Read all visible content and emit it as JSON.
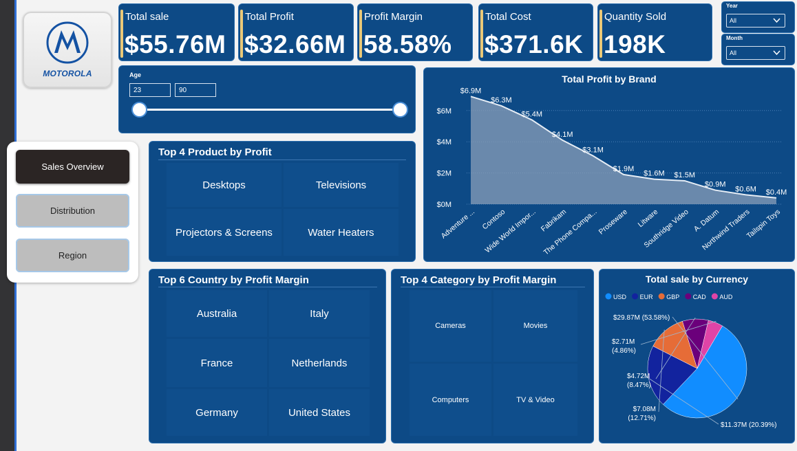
{
  "logo": {
    "brand": "MOTOROLA"
  },
  "kpis": [
    {
      "label": "Total sale",
      "value": "$55.76M"
    },
    {
      "label": "Total Profit",
      "value": "$32.66M"
    },
    {
      "label": "Profit Margin",
      "value": "58.58%"
    },
    {
      "label": "Total Cost",
      "value": "$371.6K"
    },
    {
      "label": "Quantity Sold",
      "value": "198K"
    }
  ],
  "slicers": {
    "year": {
      "label": "Year",
      "value": "All"
    },
    "month": {
      "label": "Month",
      "value": "All"
    },
    "age": {
      "label": "Age",
      "min": "23",
      "max": "90"
    }
  },
  "nav": {
    "items": [
      "Sales Overview",
      "Distribution",
      "Region"
    ],
    "active": "Sales Overview"
  },
  "top_products": {
    "title": "Top 4 Product by Profit",
    "items": [
      "Desktops",
      "Televisions",
      "Projectors & Screens",
      "Water Heaters"
    ]
  },
  "top_countries": {
    "title": "Top 6 Country by Profit Margin",
    "items": [
      "Australia",
      "Italy",
      "France",
      "Netherlands",
      "Germany",
      "United States"
    ]
  },
  "top_categories": {
    "title": "Top 4 Category by Profit Margin",
    "items": [
      "Cameras",
      "Movies",
      "Computers",
      "TV & Video"
    ]
  },
  "chart_data": [
    {
      "type": "area",
      "title": "Total Profit by Brand",
      "categories": [
        "Adventure ...",
        "Contoso",
        "Wide World Impor...",
        "Fabrikam",
        "The Phone Compa...",
        "Proseware",
        "Litware",
        "Southridge Video",
        "A. Datum",
        "Northwind Traders",
        "Tailspin Toys"
      ],
      "values": [
        6.9,
        6.3,
        5.4,
        4.1,
        3.1,
        1.9,
        1.6,
        1.5,
        0.9,
        0.6,
        0.4
      ],
      "data_labels": [
        "$6.9M",
        "$6.3M",
        "$5.4M",
        "$4.1M",
        "$3.1M",
        "$1.9M",
        "$1.6M",
        "$1.5M",
        "$0.9M",
        "$0.6M",
        "$0.4M"
      ],
      "y_ticks": [
        0,
        2,
        4,
        6
      ],
      "y_tick_labels": [
        "$0M",
        "$2M",
        "$4M",
        "$6M"
      ],
      "ylim": [
        0,
        7.4
      ],
      "grid": true,
      "color": "#8a9fb8"
    },
    {
      "type": "pie",
      "title": "Total sale by Currency",
      "legend_position": "top-left",
      "slices": [
        {
          "name": "USD",
          "value": 29.87,
          "label": "$29.87M (53.58%)",
          "color": "#118dff"
        },
        {
          "name": "EUR",
          "value": 11.37,
          "label": "$11.37M (20.39%)",
          "color": "#12239e"
        },
        {
          "name": "GBP",
          "value": 7.08,
          "label": "$7.08M (12.71%)",
          "color": "#e66c37"
        },
        {
          "name": "CAD",
          "value": 4.72,
          "label": "$4.72M (8.47%)",
          "color": "#6b007b"
        },
        {
          "name": "AUD",
          "value": 2.71,
          "label": "$2.71M (4.86%)",
          "color": "#e044a7"
        }
      ]
    }
  ]
}
